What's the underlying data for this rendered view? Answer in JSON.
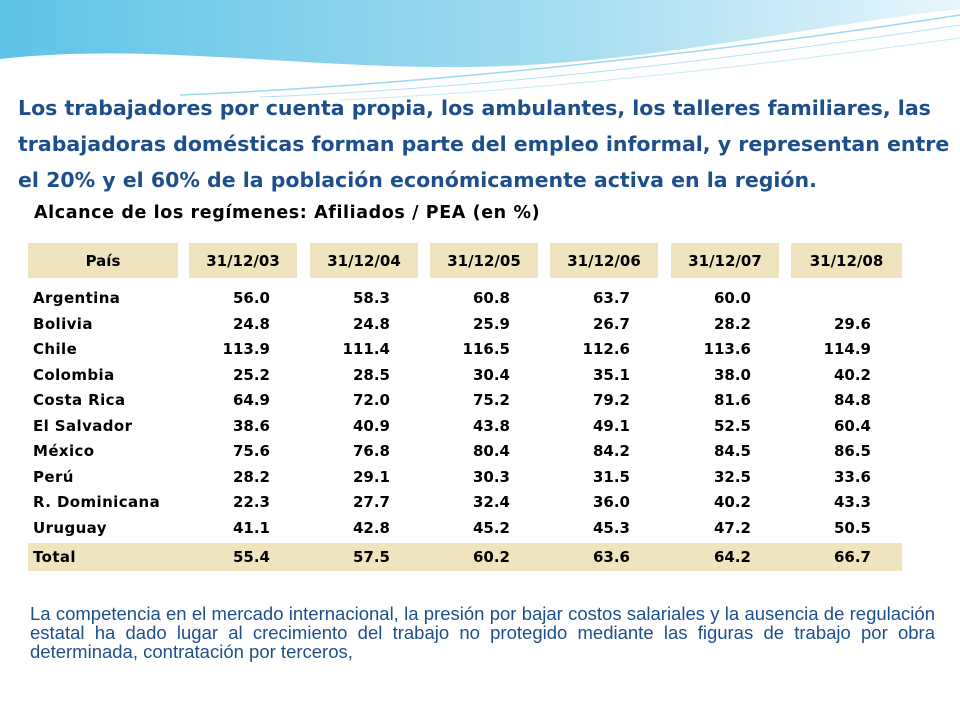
{
  "heading": "Los trabajadores por cuenta propia, los ambulantes, los talleres familiares, las trabajadoras domésticas forman parte del empleo informal, y representan entre el 20% y el 60% de la población económicamente activa en la región.",
  "table": {
    "title": "Alcance de los regímenes: Afiliados / PEA (en %)",
    "country_header": "País",
    "columns": [
      "31/12/03",
      "31/12/04",
      "31/12/05",
      "31/12/06",
      "31/12/07",
      "31/12/08"
    ],
    "rows": [
      {
        "country": "Argentina",
        "values": [
          "56.0",
          "58.3",
          "60.8",
          "63.7",
          "60.0",
          ""
        ]
      },
      {
        "country": "Bolivia",
        "values": [
          "24.8",
          "24.8",
          "25.9",
          "26.7",
          "28.2",
          "29.6"
        ]
      },
      {
        "country": "Chile",
        "values": [
          "113.9",
          "111.4",
          "116.5",
          "112.6",
          "113.6",
          "114.9"
        ]
      },
      {
        "country": "Colombia",
        "values": [
          "25.2",
          "28.5",
          "30.4",
          "35.1",
          "38.0",
          "40.2"
        ]
      },
      {
        "country": "Costa Rica",
        "values": [
          "64.9",
          "72.0",
          "75.2",
          "79.2",
          "81.6",
          "84.8"
        ]
      },
      {
        "country": "El Salvador",
        "values": [
          "38.6",
          "40.9",
          "43.8",
          "49.1",
          "52.5",
          "60.4"
        ]
      },
      {
        "country": "México",
        "values": [
          "75.6",
          "76.8",
          "80.4",
          "84.2",
          "84.5",
          "86.5"
        ]
      },
      {
        "country": "Perú",
        "values": [
          "28.2",
          "29.1",
          "30.3",
          "31.5",
          "32.5",
          "33.6"
        ]
      },
      {
        "country": "R. Dominicana",
        "values": [
          "22.3",
          "27.7",
          "32.4",
          "36.0",
          "40.2",
          "43.3"
        ]
      },
      {
        "country": "Uruguay",
        "values": [
          "41.1",
          "42.8",
          "45.2",
          "45.3",
          "47.2",
          "50.5"
        ]
      }
    ],
    "total": {
      "label": "Total",
      "values": [
        "55.4",
        "57.5",
        "60.2",
        "63.6",
        "64.2",
        "66.7"
      ]
    }
  },
  "paragraph": "La competencia en el mercado internacional, la presión por bajar costos salariales y la ausencia de regulación estatal ha dado lugar al crecimiento del trabajo no protegido mediante las figuras de trabajo por obra determinada, contratación por terceros,",
  "colors": {
    "heading": "#1f4f8b",
    "header_fill": "#f0e4be",
    "paragraph": "#1f4f8b",
    "deco_top": "#8fd3ea"
  }
}
